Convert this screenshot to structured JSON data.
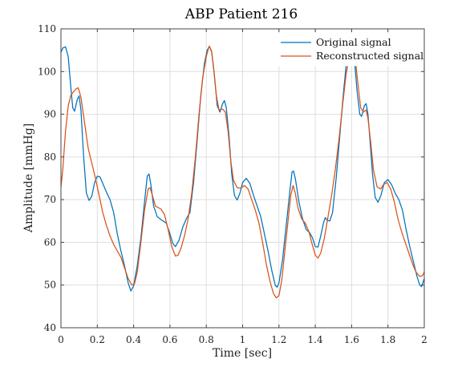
{
  "chart_data": {
    "type": "line",
    "title": "ABP Patient 216",
    "xlabel": "Time [sec]",
    "ylabel": "Amplitude [mmHg]",
    "xlim": [
      0,
      2
    ],
    "ylim": [
      40,
      110
    ],
    "xticks": [
      "0",
      "0.2",
      "0.4",
      "0.6",
      "0.8",
      "1",
      "1.2",
      "1.4",
      "1.6",
      "1.8",
      "2"
    ],
    "yticks": [
      "40",
      "50",
      "60",
      "70",
      "80",
      "90",
      "100",
      "110"
    ],
    "grid": true,
    "legend_position": "top-right",
    "series": [
      {
        "name": "Original signal",
        "color": "#0072BD",
        "points": [
          [
            0.0,
            104.5
          ],
          [
            0.01,
            105.5
          ],
          [
            0.025,
            105.8
          ],
          [
            0.04,
            103.5
          ],
          [
            0.055,
            96.0
          ],
          [
            0.065,
            91.5
          ],
          [
            0.075,
            90.7
          ],
          [
            0.09,
            93.5
          ],
          [
            0.1,
            94.3
          ],
          [
            0.11,
            91.0
          ],
          [
            0.125,
            80.0
          ],
          [
            0.14,
            71.5
          ],
          [
            0.155,
            69.8
          ],
          [
            0.17,
            70.8
          ],
          [
            0.185,
            74.0
          ],
          [
            0.2,
            75.5
          ],
          [
            0.215,
            75.3
          ],
          [
            0.23,
            73.8
          ],
          [
            0.25,
            71.8
          ],
          [
            0.27,
            70.0
          ],
          [
            0.29,
            67.0
          ],
          [
            0.31,
            62.0
          ],
          [
            0.33,
            58.0
          ],
          [
            0.35,
            54.5
          ],
          [
            0.37,
            50.5
          ],
          [
            0.385,
            48.6
          ],
          [
            0.4,
            49.8
          ],
          [
            0.42,
            54.5
          ],
          [
            0.44,
            61.0
          ],
          [
            0.46,
            69.5
          ],
          [
            0.475,
            75.5
          ],
          [
            0.485,
            76.0
          ],
          [
            0.495,
            73.5
          ],
          [
            0.51,
            68.5
          ],
          [
            0.53,
            66.0
          ],
          [
            0.555,
            65.2
          ],
          [
            0.58,
            64.5
          ],
          [
            0.6,
            62.0
          ],
          [
            0.615,
            59.8
          ],
          [
            0.63,
            59.0
          ],
          [
            0.65,
            60.5
          ],
          [
            0.67,
            63.5
          ],
          [
            0.69,
            65.5
          ],
          [
            0.71,
            67.0
          ],
          [
            0.73,
            74.0
          ],
          [
            0.75,
            84.0
          ],
          [
            0.77,
            94.5
          ],
          [
            0.79,
            102.0
          ],
          [
            0.805,
            105.0
          ],
          [
            0.818,
            105.9
          ],
          [
            0.83,
            104.5
          ],
          [
            0.845,
            99.0
          ],
          [
            0.86,
            92.0
          ],
          [
            0.875,
            90.5
          ],
          [
            0.89,
            92.5
          ],
          [
            0.9,
            93.2
          ],
          [
            0.91,
            91.5
          ],
          [
            0.925,
            85.0
          ],
          [
            0.94,
            76.0
          ],
          [
            0.955,
            71.0
          ],
          [
            0.97,
            69.9
          ],
          [
            0.985,
            71.5
          ],
          [
            1.0,
            74.0
          ],
          [
            1.02,
            75.0
          ],
          [
            1.04,
            73.8
          ],
          [
            1.06,
            71.0
          ],
          [
            1.08,
            68.5
          ],
          [
            1.1,
            66.0
          ],
          [
            1.12,
            62.0
          ],
          [
            1.14,
            58.0
          ],
          [
            1.16,
            53.5
          ],
          [
            1.18,
            49.9
          ],
          [
            1.19,
            49.5
          ],
          [
            1.2,
            50.5
          ],
          [
            1.22,
            56.0
          ],
          [
            1.24,
            64.0
          ],
          [
            1.26,
            72.0
          ],
          [
            1.272,
            76.5
          ],
          [
            1.28,
            76.7
          ],
          [
            1.29,
            75.0
          ],
          [
            1.31,
            69.5
          ],
          [
            1.33,
            65.5
          ],
          [
            1.35,
            63.0
          ],
          [
            1.37,
            62.2
          ],
          [
            1.385,
            61.0
          ],
          [
            1.4,
            59.0
          ],
          [
            1.415,
            58.9
          ],
          [
            1.43,
            61.5
          ],
          [
            1.445,
            64.5
          ],
          [
            1.455,
            65.8
          ],
          [
            1.465,
            65.2
          ],
          [
            1.48,
            65.0
          ],
          [
            1.495,
            67.0
          ],
          [
            1.515,
            75.0
          ],
          [
            1.535,
            85.0
          ],
          [
            1.555,
            95.0
          ],
          [
            1.57,
            101.5
          ],
          [
            1.585,
            105.0
          ],
          [
            1.6,
            105.5
          ],
          [
            1.615,
            103.0
          ],
          [
            1.63,
            95.5
          ],
          [
            1.645,
            90.0
          ],
          [
            1.655,
            89.5
          ],
          [
            1.67,
            92.0
          ],
          [
            1.68,
            92.5
          ],
          [
            1.69,
            90.0
          ],
          [
            1.7,
            84.5
          ],
          [
            1.715,
            76.0
          ],
          [
            1.73,
            70.5
          ],
          [
            1.745,
            69.4
          ],
          [
            1.76,
            70.8
          ],
          [
            1.78,
            74.0
          ],
          [
            1.8,
            74.7
          ],
          [
            1.82,
            73.5
          ],
          [
            1.84,
            71.5
          ],
          [
            1.86,
            70.0
          ],
          [
            1.88,
            67.5
          ],
          [
            1.9,
            63.0
          ],
          [
            1.92,
            59.0
          ],
          [
            1.94,
            55.5
          ],
          [
            1.96,
            52.0
          ],
          [
            1.975,
            50.0
          ],
          [
            1.985,
            49.6
          ],
          [
            2.0,
            51.5
          ]
        ]
      },
      {
        "name": "Reconstructed signal",
        "color": "#D95319",
        "points": [
          [
            0.0,
            73.0
          ],
          [
            0.01,
            77.0
          ],
          [
            0.025,
            86.0
          ],
          [
            0.04,
            92.0
          ],
          [
            0.055,
            94.5
          ],
          [
            0.07,
            95.3
          ],
          [
            0.085,
            96.0
          ],
          [
            0.095,
            96.2
          ],
          [
            0.11,
            94.0
          ],
          [
            0.13,
            88.0
          ],
          [
            0.15,
            82.0
          ],
          [
            0.17,
            78.5
          ],
          [
            0.19,
            75.0
          ],
          [
            0.21,
            71.0
          ],
          [
            0.23,
            67.0
          ],
          [
            0.25,
            64.0
          ],
          [
            0.27,
            61.5
          ],
          [
            0.29,
            59.5
          ],
          [
            0.31,
            58.0
          ],
          [
            0.33,
            56.5
          ],
          [
            0.35,
            54.0
          ],
          [
            0.37,
            51.5
          ],
          [
            0.39,
            50.0
          ],
          [
            0.405,
            50.3
          ],
          [
            0.42,
            53.0
          ],
          [
            0.44,
            60.0
          ],
          [
            0.46,
            67.5
          ],
          [
            0.48,
            72.5
          ],
          [
            0.49,
            72.8
          ],
          [
            0.5,
            71.5
          ],
          [
            0.52,
            68.5
          ],
          [
            0.55,
            67.8
          ],
          [
            0.57,
            66.5
          ],
          [
            0.59,
            63.0
          ],
          [
            0.61,
            59.0
          ],
          [
            0.63,
            56.8
          ],
          [
            0.645,
            57.0
          ],
          [
            0.66,
            58.5
          ],
          [
            0.68,
            61.5
          ],
          [
            0.7,
            65.5
          ],
          [
            0.72,
            71.5
          ],
          [
            0.74,
            80.0
          ],
          [
            0.76,
            90.0
          ],
          [
            0.78,
            98.5
          ],
          [
            0.8,
            103.5
          ],
          [
            0.815,
            105.9
          ],
          [
            0.828,
            105.0
          ],
          [
            0.84,
            101.0
          ],
          [
            0.855,
            94.5
          ],
          [
            0.87,
            91.0
          ],
          [
            0.89,
            91.2
          ],
          [
            0.905,
            90.5
          ],
          [
            0.92,
            86.0
          ],
          [
            0.935,
            79.0
          ],
          [
            0.95,
            74.5
          ],
          [
            0.97,
            72.8
          ],
          [
            0.99,
            72.7
          ],
          [
            1.01,
            73.3
          ],
          [
            1.03,
            72.5
          ],
          [
            1.05,
            70.0
          ],
          [
            1.07,
            67.5
          ],
          [
            1.09,
            64.5
          ],
          [
            1.11,
            60.0
          ],
          [
            1.13,
            55.0
          ],
          [
            1.15,
            51.0
          ],
          [
            1.17,
            48.0
          ],
          [
            1.185,
            47.0
          ],
          [
            1.2,
            47.5
          ],
          [
            1.215,
            51.0
          ],
          [
            1.23,
            57.0
          ],
          [
            1.25,
            65.0
          ],
          [
            1.265,
            71.0
          ],
          [
            1.278,
            73.3
          ],
          [
            1.29,
            71.5
          ],
          [
            1.305,
            68.0
          ],
          [
            1.325,
            65.5
          ],
          [
            1.345,
            64.5
          ],
          [
            1.365,
            62.5
          ],
          [
            1.38,
            60.0
          ],
          [
            1.4,
            57.0
          ],
          [
            1.415,
            56.3
          ],
          [
            1.43,
            57.5
          ],
          [
            1.45,
            61.0
          ],
          [
            1.47,
            66.0
          ],
          [
            1.49,
            71.0
          ],
          [
            1.51,
            77.0
          ],
          [
            1.53,
            84.0
          ],
          [
            1.55,
            92.0
          ],
          [
            1.57,
            99.5
          ],
          [
            1.59,
            104.0
          ],
          [
            1.605,
            105.3
          ],
          [
            1.62,
            103.0
          ],
          [
            1.635,
            97.0
          ],
          [
            1.65,
            91.5
          ],
          [
            1.665,
            90.5
          ],
          [
            1.68,
            91.0
          ],
          [
            1.69,
            89.0
          ],
          [
            1.705,
            83.5
          ],
          [
            1.72,
            77.0
          ],
          [
            1.74,
            73.0
          ],
          [
            1.76,
            72.5
          ],
          [
            1.775,
            73.5
          ],
          [
            1.795,
            74.0
          ],
          [
            1.815,
            72.5
          ],
          [
            1.835,
            69.5
          ],
          [
            1.855,
            65.5
          ],
          [
            1.875,
            62.5
          ],
          [
            1.895,
            60.0
          ],
          [
            1.915,
            57.5
          ],
          [
            1.935,
            55.0
          ],
          [
            1.955,
            53.0
          ],
          [
            1.975,
            52.0
          ],
          [
            1.99,
            52.2
          ],
          [
            2.0,
            53.0
          ]
        ]
      }
    ]
  }
}
